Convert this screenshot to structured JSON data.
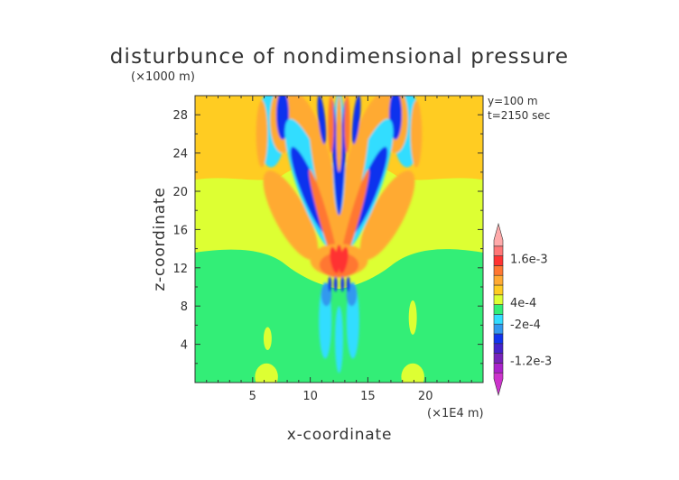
{
  "chart_data": {
    "type": "heatmap",
    "title": "disturbunce of nondimensional pressure",
    "xlabel": "x-coordinate",
    "ylabel": "z-coordinate",
    "x_unit": "(×1E4 m)",
    "y_unit": "(×1000 m)",
    "xlim": [
      0,
      25
    ],
    "ylim": [
      0,
      30
    ],
    "x_ticks": [
      "5",
      "10",
      "15",
      "20"
    ],
    "x_tick_values": [
      5,
      10,
      15,
      20
    ],
    "y_ticks": [
      "4",
      "8",
      "12",
      "16",
      "20",
      "24",
      "28"
    ],
    "y_tick_values": [
      4,
      8,
      12,
      16,
      20,
      24,
      28
    ],
    "annotations": [
      "y=100 m",
      "t=2150 sec"
    ],
    "colorbar": {
      "labels": [
        "1.6e-3",
        "4e-4",
        "-2e-4",
        "-1.2e-3"
      ],
      "label_values": [
        0.0016,
        0.0004,
        -0.0002,
        -0.0012
      ],
      "range": [
        -0.0018,
        0.0022
      ],
      "colors": [
        "#cc33cc",
        "#aa22cc",
        "#7722bb",
        "#4422cc",
        "#1133ee",
        "#3399ee",
        "#33ddff",
        "#33ee77",
        "#ddff33",
        "#ffcc22",
        "#ffaa33",
        "#ff7733",
        "#ff3333",
        "#ff7777",
        "#ffaaaa"
      ]
    },
    "field_colors": {
      "background_low": "#33ee77",
      "background_mid": "#ddff33",
      "background_high": "#ffcc22",
      "orange": "#ffaa33",
      "red_orange": "#ff7733",
      "red": "#ff3333",
      "cyan": "#33ddff",
      "light_blue": "#3399ee",
      "blue": "#1133ee"
    }
  }
}
